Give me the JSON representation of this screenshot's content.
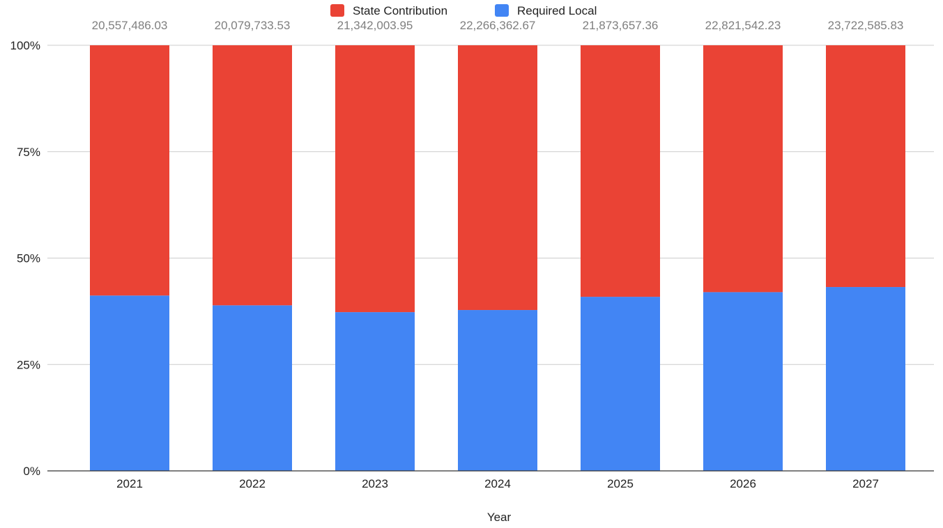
{
  "chart_data": {
    "type": "bar",
    "stacked": "percent",
    "xlabel": "Year",
    "ylabel": "",
    "ylim": [
      0,
      100
    ],
    "yticks": [
      "0%",
      "25%",
      "50%",
      "75%",
      "100%"
    ],
    "categories": [
      "2021",
      "2022",
      "2023",
      "2024",
      "2025",
      "2026",
      "2027"
    ],
    "totals": [
      "20,557,486.03",
      "20,079,733.53",
      "21,342,003.95",
      "22,266,362.67",
      "21,873,657.36",
      "22,821,542.23",
      "23,722,585.83"
    ],
    "series": [
      {
        "name": "Required Local",
        "color": "#4285f4",
        "values": [
          41.2,
          38.9,
          37.3,
          37.8,
          40.9,
          42.0,
          43.2
        ]
      },
      {
        "name": "State Contribution",
        "color": "#ea4335",
        "values": [
          58.8,
          61.1,
          62.7,
          62.2,
          59.1,
          58.0,
          56.8
        ]
      }
    ],
    "legend": {
      "position": "top",
      "order": [
        "State Contribution",
        "Required Local"
      ]
    },
    "grid": true,
    "colors": {
      "axis": "#333333",
      "grid": "#cccccc",
      "total_label": "#7f7f7f",
      "tick_label": "#222222"
    }
  }
}
